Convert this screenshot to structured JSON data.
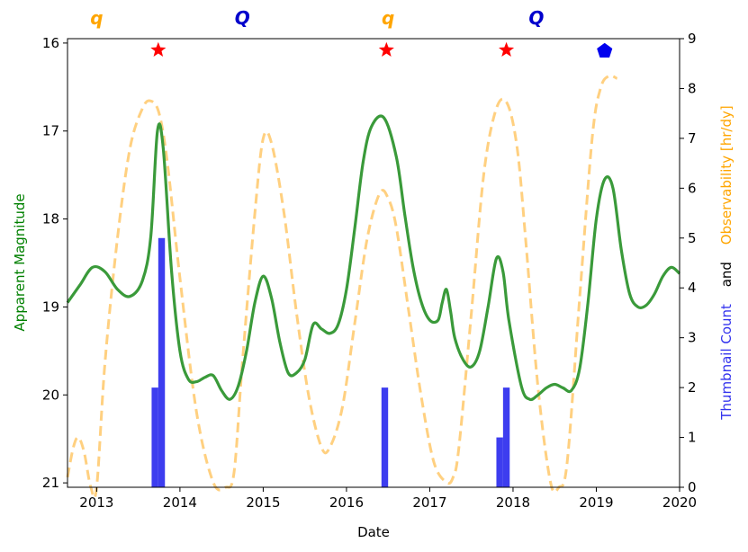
{
  "chart_data": {
    "type": "line",
    "xlabel": "Date",
    "ylabel_left": "Apparent Magnitude",
    "ylabel_right_parts": [
      {
        "text": "Thumbnail Count",
        "color": "#3333ee"
      },
      {
        "text": "and",
        "color": "#000000"
      },
      {
        "text": "Observability [hr/dy]",
        "color": "#ffa500"
      }
    ],
    "xlim": [
      2012.65,
      2020.0
    ],
    "ylim_left": [
      21.05,
      15.95
    ],
    "ylim_right": [
      0,
      9
    ],
    "x_ticks": [
      "2013",
      "2014",
      "2015",
      "2016",
      "2017",
      "2018",
      "2019",
      "2020"
    ],
    "x_tick_values": [
      2013,
      2014,
      2015,
      2016,
      2017,
      2018,
      2019,
      2020
    ],
    "y_left_ticks": [
      "16",
      "17",
      "18",
      "19",
      "20",
      "21"
    ],
    "y_left_tick_values": [
      16,
      17,
      18,
      19,
      20,
      21
    ],
    "y_right_ticks": [
      "0",
      "1",
      "2",
      "3",
      "4",
      "5",
      "6",
      "7",
      "8",
      "9"
    ],
    "y_right_tick_values": [
      0,
      1,
      2,
      3,
      4,
      5,
      6,
      7,
      8,
      9
    ],
    "magnitude_series": {
      "color": "#3a9a3a",
      "x": [
        2012.65,
        2012.8,
        2012.95,
        2013.1,
        2013.25,
        2013.4,
        2013.55,
        2013.65,
        2013.73,
        2013.8,
        2013.9,
        2014.0,
        2014.1,
        2014.2,
        2014.3,
        2014.4,
        2014.5,
        2014.6,
        2014.7,
        2014.8,
        2014.9,
        2015.0,
        2015.1,
        2015.2,
        2015.3,
        2015.4,
        2015.5,
        2015.6,
        2015.7,
        2015.8,
        2015.9,
        2016.0,
        2016.1,
        2016.2,
        2016.3,
        2016.45,
        2016.6,
        2016.7,
        2016.8,
        2016.9,
        2017.0,
        2017.1,
        2017.15,
        2017.2,
        2017.25,
        2017.3,
        2017.4,
        2017.5,
        2017.6,
        2017.7,
        2017.8,
        2017.88,
        2017.95,
        2018.1,
        2018.2,
        2018.3,
        2018.4,
        2018.5,
        2018.6,
        2018.7,
        2018.8,
        2018.9,
        2019.0,
        2019.1,
        2019.2,
        2019.3,
        2019.4,
        2019.5,
        2019.6,
        2019.7,
        2019.8,
        2019.9,
        2020.0
      ],
      "y": [
        18.95,
        18.75,
        18.55,
        18.6,
        18.8,
        18.88,
        18.7,
        18.2,
        17.0,
        17.2,
        18.6,
        19.5,
        19.82,
        19.85,
        19.8,
        19.78,
        19.95,
        20.05,
        19.9,
        19.5,
        18.95,
        18.65,
        18.9,
        19.4,
        19.75,
        19.75,
        19.6,
        19.2,
        19.25,
        19.3,
        19.2,
        18.8,
        18.1,
        17.35,
        16.95,
        16.85,
        17.3,
        17.95,
        18.55,
        18.95,
        19.15,
        19.15,
        18.95,
        18.8,
        19.05,
        19.35,
        19.6,
        19.68,
        19.5,
        19.0,
        18.45,
        18.6,
        19.15,
        19.9,
        20.05,
        20.0,
        19.92,
        19.88,
        19.92,
        19.95,
        19.7,
        18.95,
        18.0,
        17.55,
        17.65,
        18.35,
        18.85,
        19.0,
        18.98,
        18.85,
        18.65,
        18.55,
        18.62
      ]
    },
    "observability_series": {
      "color": "#ffd080",
      "x": [
        2012.65,
        2012.72,
        2012.78,
        2012.85,
        2012.93,
        2013.0,
        2013.1,
        2013.25,
        2013.4,
        2013.55,
        2013.65,
        2013.75,
        2013.85,
        2014.0,
        2014.2,
        2014.4,
        2014.55,
        2014.65,
        2014.75,
        2014.9,
        2015.0,
        2015.1,
        2015.25,
        2015.4,
        2015.55,
        2015.7,
        2015.8,
        2015.95,
        2016.1,
        2016.25,
        2016.4,
        2016.5,
        2016.6,
        2016.75,
        2016.9,
        2017.05,
        2017.2,
        2017.28,
        2017.35,
        2017.5,
        2017.65,
        2017.8,
        2017.93,
        2018.05,
        2018.15,
        2018.3,
        2018.45,
        2018.55,
        2018.65,
        2018.8,
        2018.95,
        2019.05,
        2019.15,
        2019.25
      ],
      "y": [
        0.2,
        0.8,
        1.0,
        0.7,
        0.0,
        0.0,
        2.5,
        5.0,
        6.8,
        7.6,
        7.75,
        7.5,
        6.5,
        4.2,
        1.5,
        0.1,
        0.0,
        0.3,
        2.5,
        5.5,
        7.0,
        6.9,
        5.5,
        3.5,
        1.8,
        0.8,
        0.8,
        1.6,
        3.3,
        5.0,
        5.9,
        5.8,
        5.2,
        3.5,
        1.8,
        0.5,
        0.1,
        0.2,
        0.8,
        3.5,
        6.3,
        7.6,
        7.7,
        6.8,
        5.0,
        2.0,
        0.1,
        0.0,
        0.5,
        3.8,
        7.0,
        8.0,
        8.25,
        8.2
      ]
    },
    "thumbnail_bars": {
      "color": "#3333ee",
      "items": [
        {
          "x0": 2013.66,
          "x1": 2013.74,
          "value": 2
        },
        {
          "x0": 2013.74,
          "x1": 2013.82,
          "value": 5
        },
        {
          "x0": 2016.42,
          "x1": 2016.5,
          "value": 2
        },
        {
          "x0": 2017.8,
          "x1": 2017.88,
          "value": 1
        },
        {
          "x0": 2017.88,
          "x1": 2017.96,
          "value": 2
        }
      ]
    },
    "perihelion_markers": {
      "color": "#ff0000",
      "symbol": "star",
      "x": [
        2013.74,
        2016.48,
        2017.92
      ],
      "y": 16.08
    },
    "now_marker": {
      "color": "#0000ee",
      "symbol": "pentagon",
      "x": 2019.1,
      "y": 16.08
    },
    "qq_labels": [
      {
        "text": "q",
        "x": 2013.0,
        "color": "#ffa500"
      },
      {
        "text": "Q",
        "x": 2014.75,
        "color": "#0000cc"
      },
      {
        "text": "q",
        "x": 2016.5,
        "color": "#ffa500"
      },
      {
        "text": "Q",
        "x": 2018.28,
        "color": "#0000cc"
      }
    ]
  }
}
